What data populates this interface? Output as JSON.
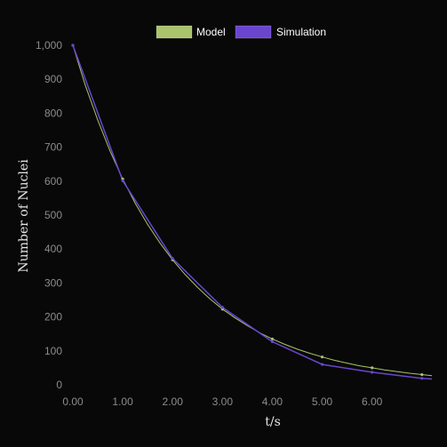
{
  "chart_data": {
    "type": "line",
    "title": "",
    "xlabel": "t/s",
    "ylabel": "Number of Nuclei",
    "xlim": [
      0,
      7.2
    ],
    "ylim": [
      0,
      1000
    ],
    "x_ticks": [
      "0.00",
      "1.00",
      "2.00",
      "3.00",
      "4.00",
      "5.00",
      "6.00"
    ],
    "y_ticks": [
      "0",
      "100",
      "200",
      "300",
      "400",
      "500",
      "600",
      "700",
      "800",
      "900",
      "1,000"
    ],
    "grid": false,
    "legend_position": "top-center",
    "series": [
      {
        "name": "Model",
        "color": "#a9c46c",
        "points": [
          [
            0,
            1000
          ],
          [
            0.25,
            882
          ],
          [
            0.5,
            779
          ],
          [
            0.75,
            687
          ],
          [
            1,
            606
          ],
          [
            1.25,
            535
          ],
          [
            1.5,
            472
          ],
          [
            1.75,
            417
          ],
          [
            2,
            368
          ],
          [
            2.25,
            325
          ],
          [
            2.5,
            287
          ],
          [
            2.75,
            253
          ],
          [
            3,
            223
          ],
          [
            3.25,
            197
          ],
          [
            3.5,
            174
          ],
          [
            3.75,
            153
          ],
          [
            4,
            135
          ],
          [
            4.25,
            119
          ],
          [
            4.5,
            105
          ],
          [
            4.75,
            93
          ],
          [
            5,
            82
          ],
          [
            5.25,
            72
          ],
          [
            5.5,
            64
          ],
          [
            5.75,
            56
          ],
          [
            6,
            50
          ],
          [
            6.25,
            44
          ],
          [
            6.5,
            39
          ],
          [
            6.75,
            34
          ],
          [
            7,
            30
          ],
          [
            7.2,
            27
          ]
        ],
        "markers": [
          [
            0,
            1000
          ],
          [
            1,
            606
          ],
          [
            2,
            368
          ],
          [
            3,
            223
          ],
          [
            4,
            135
          ],
          [
            5,
            82
          ],
          [
            6,
            50
          ],
          [
            7,
            30
          ]
        ]
      },
      {
        "name": "Simulation",
        "color": "#6a46cf",
        "points": [
          [
            0,
            1000
          ],
          [
            1,
            601
          ],
          [
            2,
            372
          ],
          [
            3,
            228
          ],
          [
            4,
            127
          ],
          [
            5,
            60
          ],
          [
            6,
            37
          ],
          [
            7,
            19
          ],
          [
            7.2,
            17
          ]
        ],
        "markers": [
          [
            0,
            1000
          ],
          [
            1,
            601
          ],
          [
            2,
            372
          ],
          [
            3,
            228
          ],
          [
            4,
            127
          ],
          [
            5,
            60
          ],
          [
            6,
            37
          ],
          [
            7,
            19
          ]
        ]
      }
    ]
  }
}
